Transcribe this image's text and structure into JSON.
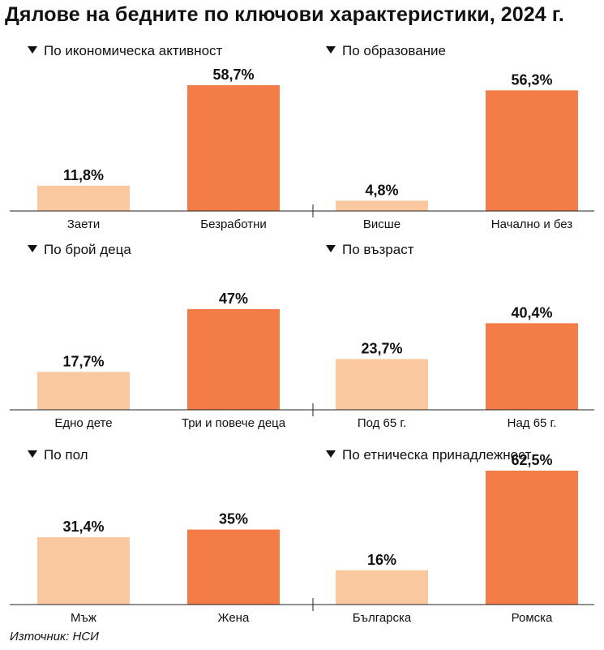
{
  "title": "Дялове на бедните по ключови характеристики, 2024 г.",
  "source": "Източник: НСИ",
  "colors": {
    "light": "#f9c89e",
    "dark": "#f47c47",
    "text": "#111111"
  },
  "chart_data": [
    {
      "type": "bar",
      "title": "По икономическа активност",
      "categories": [
        "Заети",
        "Безработни"
      ],
      "values": [
        11.8,
        58.7
      ],
      "value_labels": [
        "11,8%",
        "58,7%"
      ],
      "ylim": [
        0,
        100
      ]
    },
    {
      "type": "bar",
      "title": "По образование",
      "categories": [
        "Висше",
        "Начално и без"
      ],
      "values": [
        4.8,
        56.3
      ],
      "value_labels": [
        "4,8%",
        "56,3%"
      ],
      "ylim": [
        0,
        100
      ]
    },
    {
      "type": "bar",
      "title": "По брой деца",
      "categories": [
        "Едно дете",
        "Три и повече деца"
      ],
      "values": [
        17.7,
        47
      ],
      "value_labels": [
        "17,7%",
        "47%"
      ],
      "ylim": [
        0,
        100
      ]
    },
    {
      "type": "bar",
      "title": "По възраст",
      "categories": [
        "Под 65 г.",
        "Над 65 г."
      ],
      "values": [
        23.7,
        40.4
      ],
      "value_labels": [
        "23,7%",
        "40,4%"
      ],
      "ylim": [
        0,
        100
      ]
    },
    {
      "type": "bar",
      "title": "По пол",
      "categories": [
        "Мъж",
        "Жена"
      ],
      "values": [
        31.4,
        35
      ],
      "value_labels": [
        "31,4%",
        "35%"
      ],
      "ylim": [
        0,
        100
      ]
    },
    {
      "type": "bar",
      "title": "По етническа принадлежност",
      "categories": [
        "Българска",
        "Ромска"
      ],
      "values": [
        16,
        62.5
      ],
      "value_labels": [
        "16%",
        "62,5%"
      ],
      "ylim": [
        0,
        100
      ]
    }
  ]
}
